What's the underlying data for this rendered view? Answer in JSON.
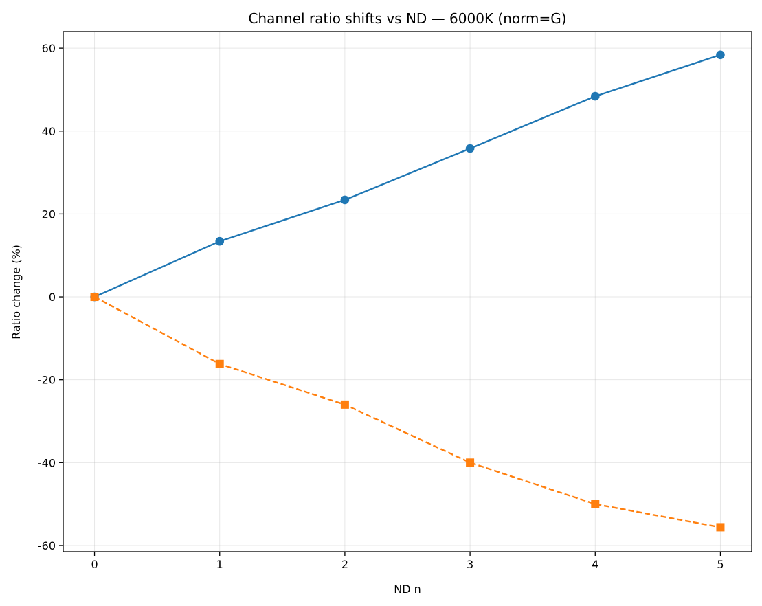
{
  "chart_data": {
    "type": "line",
    "title": "Channel ratio shifts vs ND — 6000K (norm=G)",
    "xlabel": "ND n",
    "ylabel": "Ratio change (%)",
    "x": [
      0,
      1,
      2,
      3,
      4,
      5
    ],
    "xlim": [
      -0.25,
      5.25
    ],
    "ylim": [
      -61.5,
      64
    ],
    "xticks": [
      0,
      1,
      2,
      3,
      4,
      5
    ],
    "yticks": [
      60,
      40,
      20,
      0,
      -20,
      -40,
      -60
    ],
    "grid": true,
    "series": [
      {
        "color": "#1f77b4",
        "marker": "circle",
        "linestyle": "solid",
        "values": [
          0,
          13.4,
          23.4,
          35.8,
          48.4,
          58.4
        ]
      },
      {
        "color": "#ff7f0e",
        "marker": "square",
        "linestyle": "dashed",
        "values": [
          0,
          -16.2,
          -26,
          -40,
          -50,
          -55.6
        ]
      }
    ]
  }
}
